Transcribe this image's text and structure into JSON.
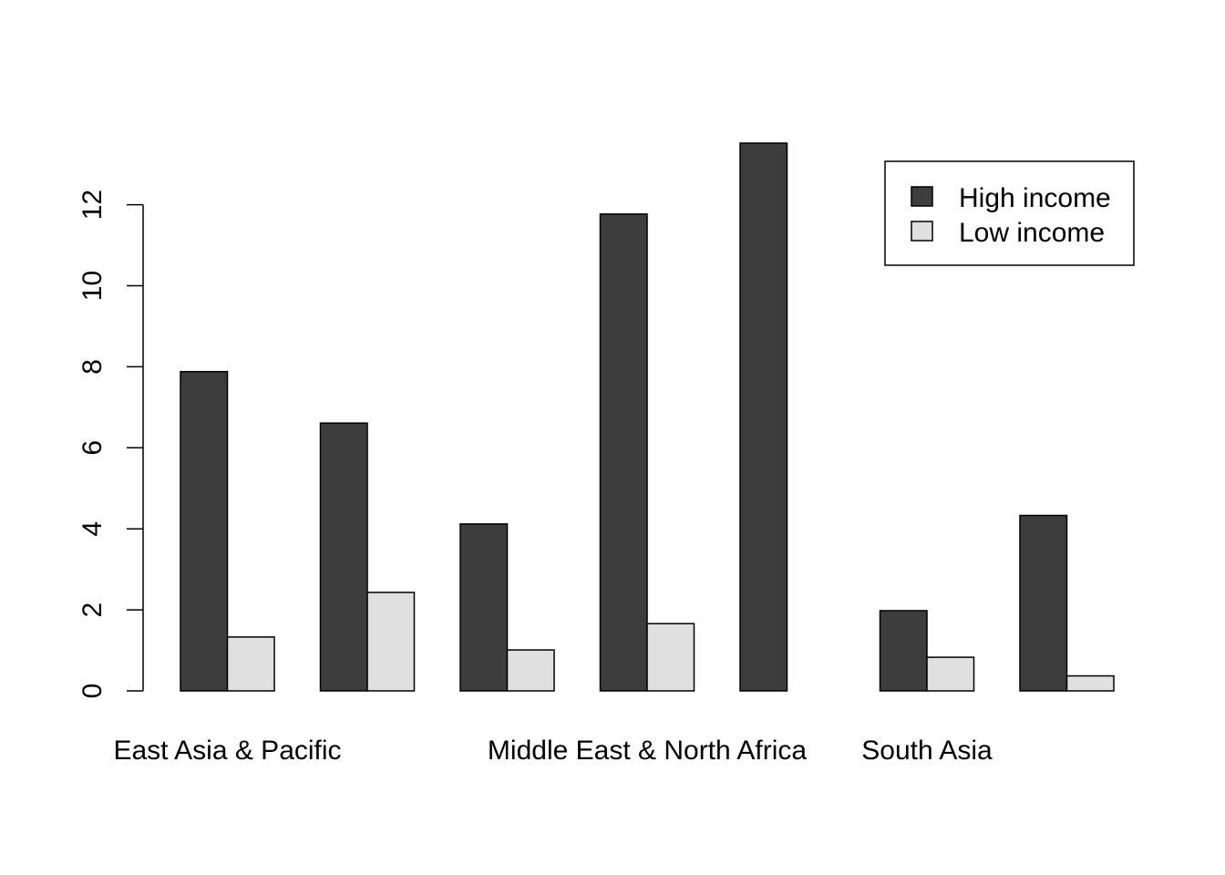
{
  "chart_data": {
    "type": "bar",
    "categories": [
      "East Asia & Pacific",
      "",
      "",
      "Middle East & North Africa",
      "",
      "South Asia",
      ""
    ],
    "series": [
      {
        "name": "High income",
        "values": [
          7.88,
          6.61,
          4.12,
          11.77,
          13.52,
          1.98,
          4.33
        ],
        "color": "#3d3d3d"
      },
      {
        "name": "Low income",
        "values": [
          1.33,
          2.43,
          1.01,
          1.66,
          null,
          0.83,
          0.37
        ],
        "color": "#e0e0e0"
      }
    ],
    "yticks": [
      0,
      2,
      4,
      6,
      8,
      10,
      12
    ],
    "ylim": [
      0,
      13.52
    ],
    "grid": false,
    "legend_position": "top-right"
  }
}
